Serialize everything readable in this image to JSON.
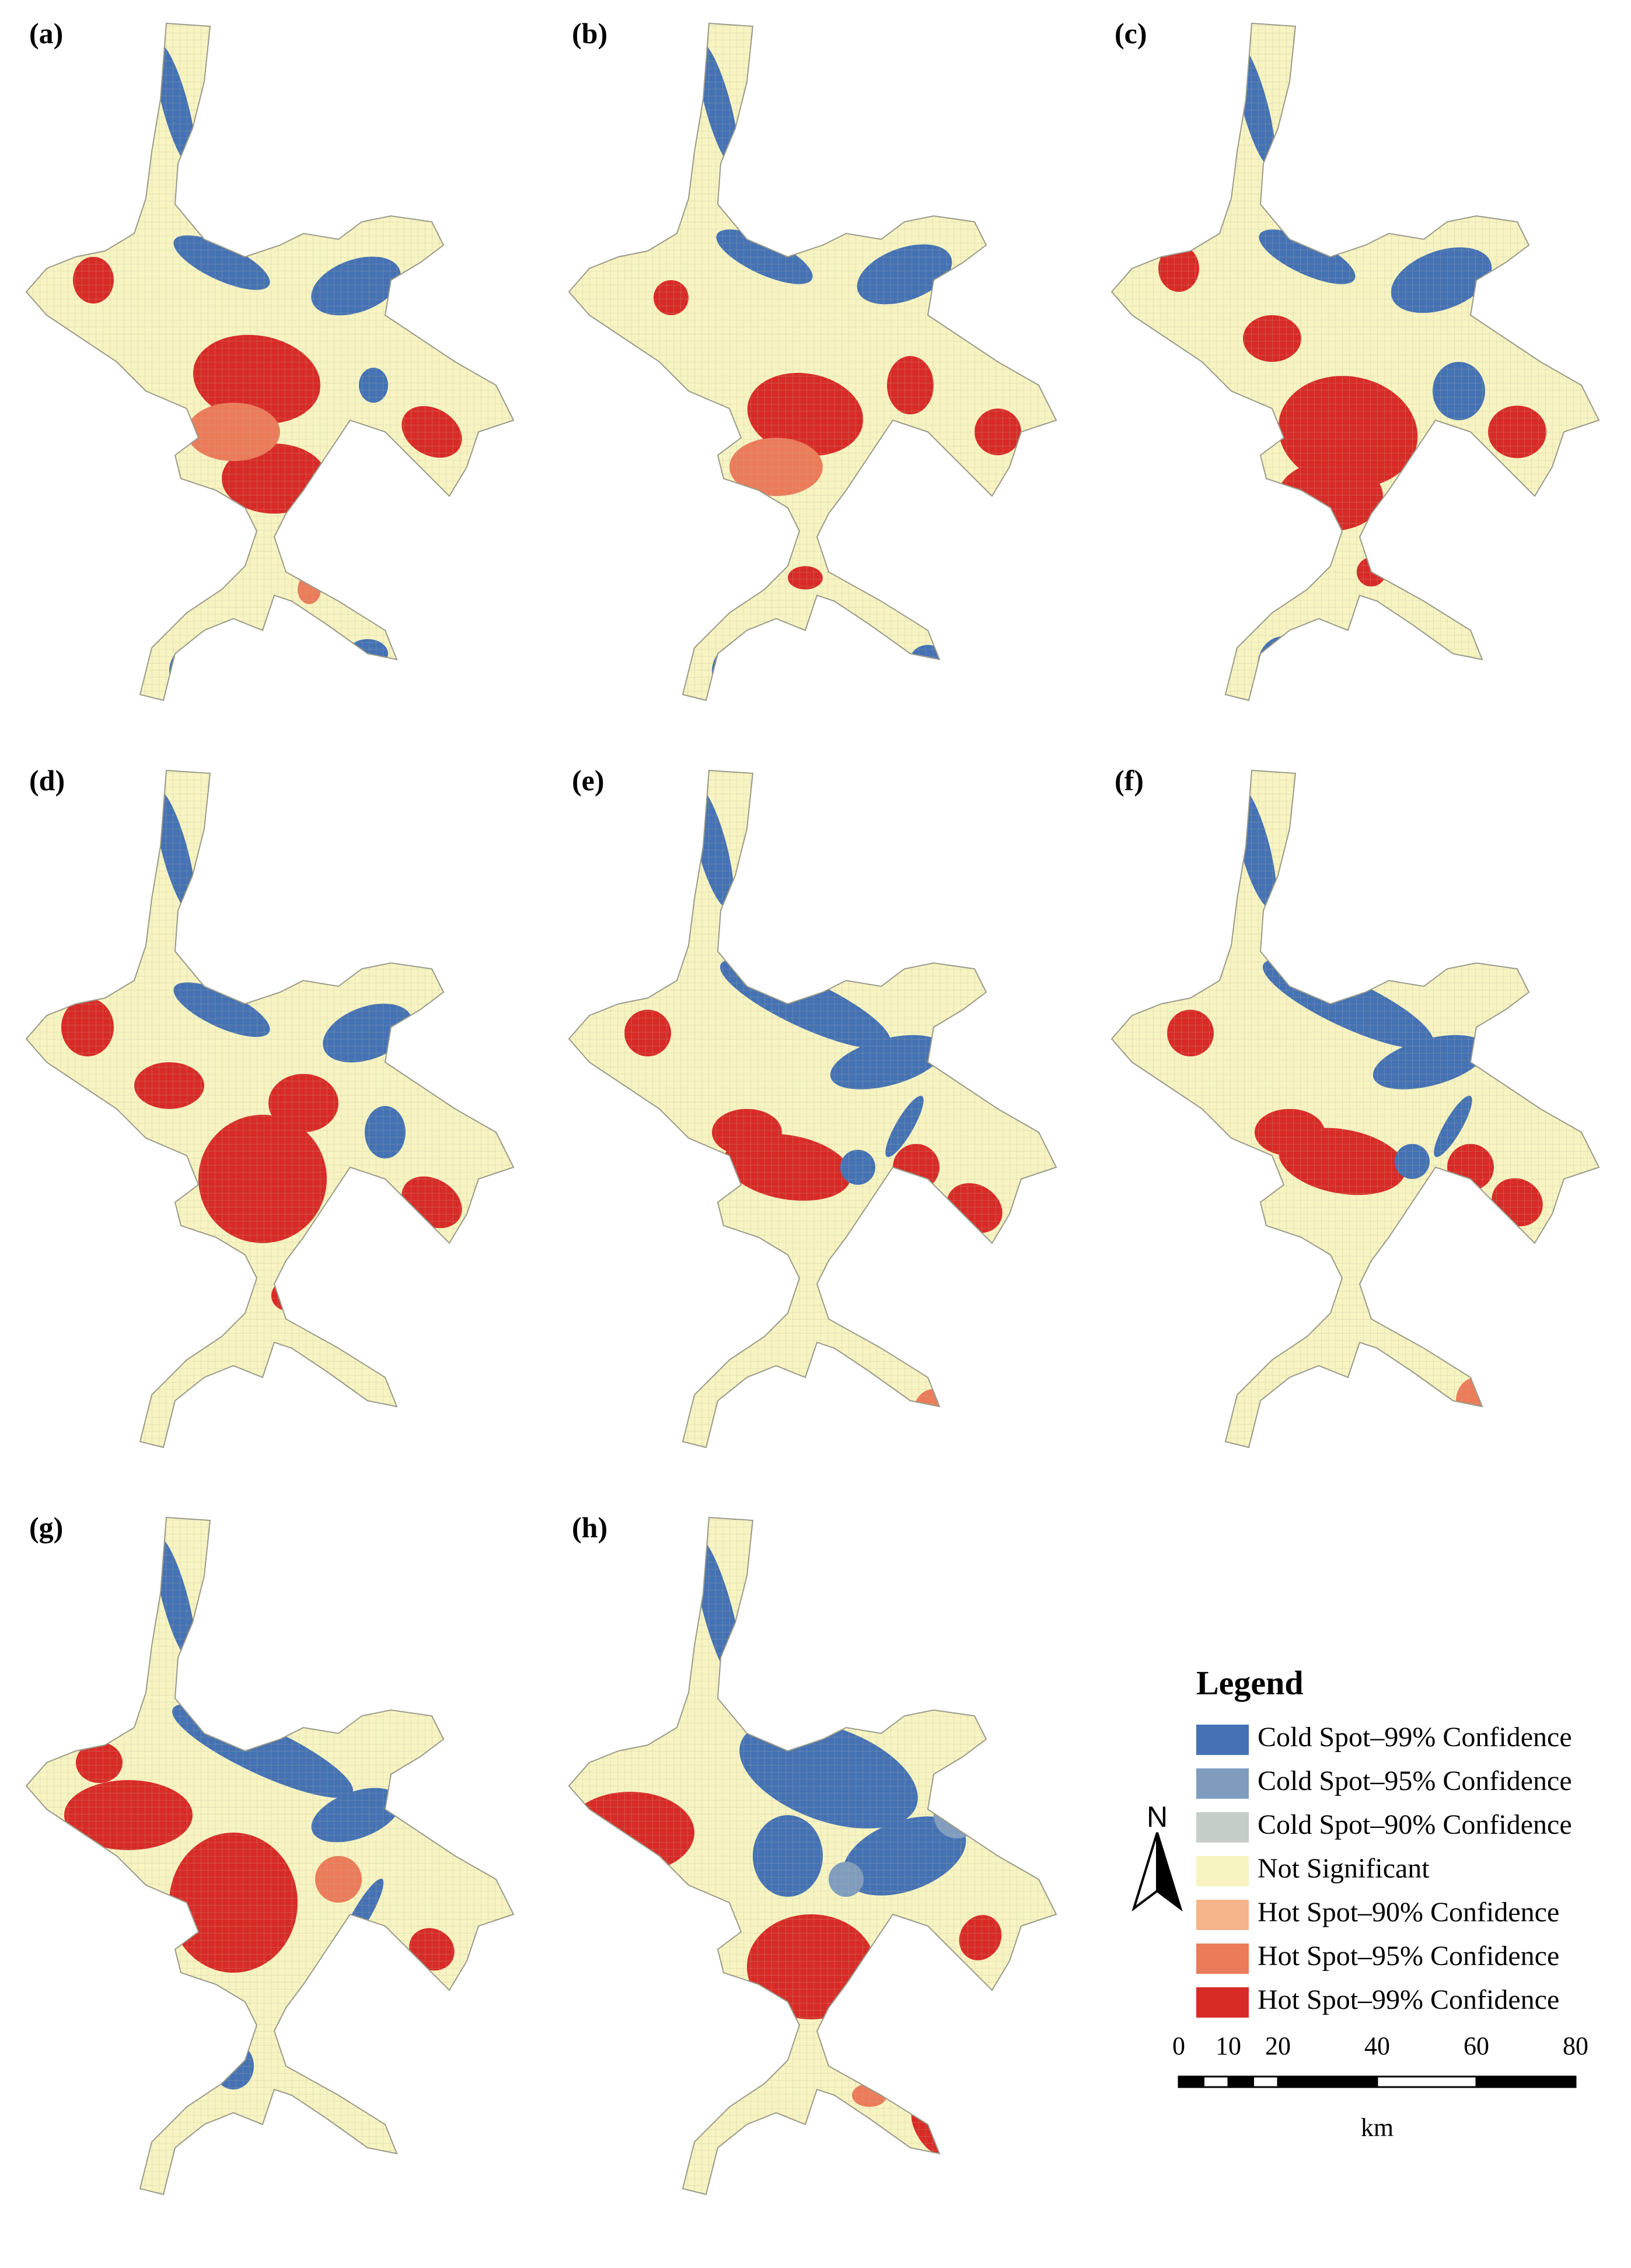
{
  "colors": {
    "cold99": "#4472b4",
    "cold95": "#7f9cbf",
    "cold90": "#c5cec6",
    "notsig": "#f7f4c2",
    "hot90": "#f5b48c",
    "hot95": "#ec7b59",
    "hot99": "#d82b27",
    "grid": "#b9b59a"
  },
  "panels": [
    {
      "label": "(a)"
    },
    {
      "label": "(b)"
    },
    {
      "label": "(c)"
    },
    {
      "label": "(d)"
    },
    {
      "label": "(e)"
    },
    {
      "label": "(f)"
    },
    {
      "label": "(g)"
    },
    {
      "label": "(h)"
    }
  ],
  "legend": {
    "title": "Legend",
    "items": [
      {
        "label": "Cold Spot–99% Confidence",
        "color": "#4472b4"
      },
      {
        "label": "Cold Spot–95% Confidence",
        "color": "#7f9cbf"
      },
      {
        "label": "Cold Spot–90% Confidence",
        "color": "#c5cec6"
      },
      {
        "label": "Not Significant",
        "color": "#f7f4c2"
      },
      {
        "label": "Hot Spot–90% Confidence",
        "color": "#f5b48c"
      },
      {
        "label": "Hot Spot–95% Confidence",
        "color": "#ec7b59"
      },
      {
        "label": "Hot Spot–99% Confidence",
        "color": "#d82b27"
      }
    ]
  },
  "north_arrow": {
    "label": "N"
  },
  "scale_bar": {
    "ticks": [
      "0",
      "10",
      "20",
      "40",
      "60",
      "80"
    ],
    "tick_values": [
      0,
      10,
      20,
      40,
      60,
      80
    ],
    "unit": "km"
  }
}
